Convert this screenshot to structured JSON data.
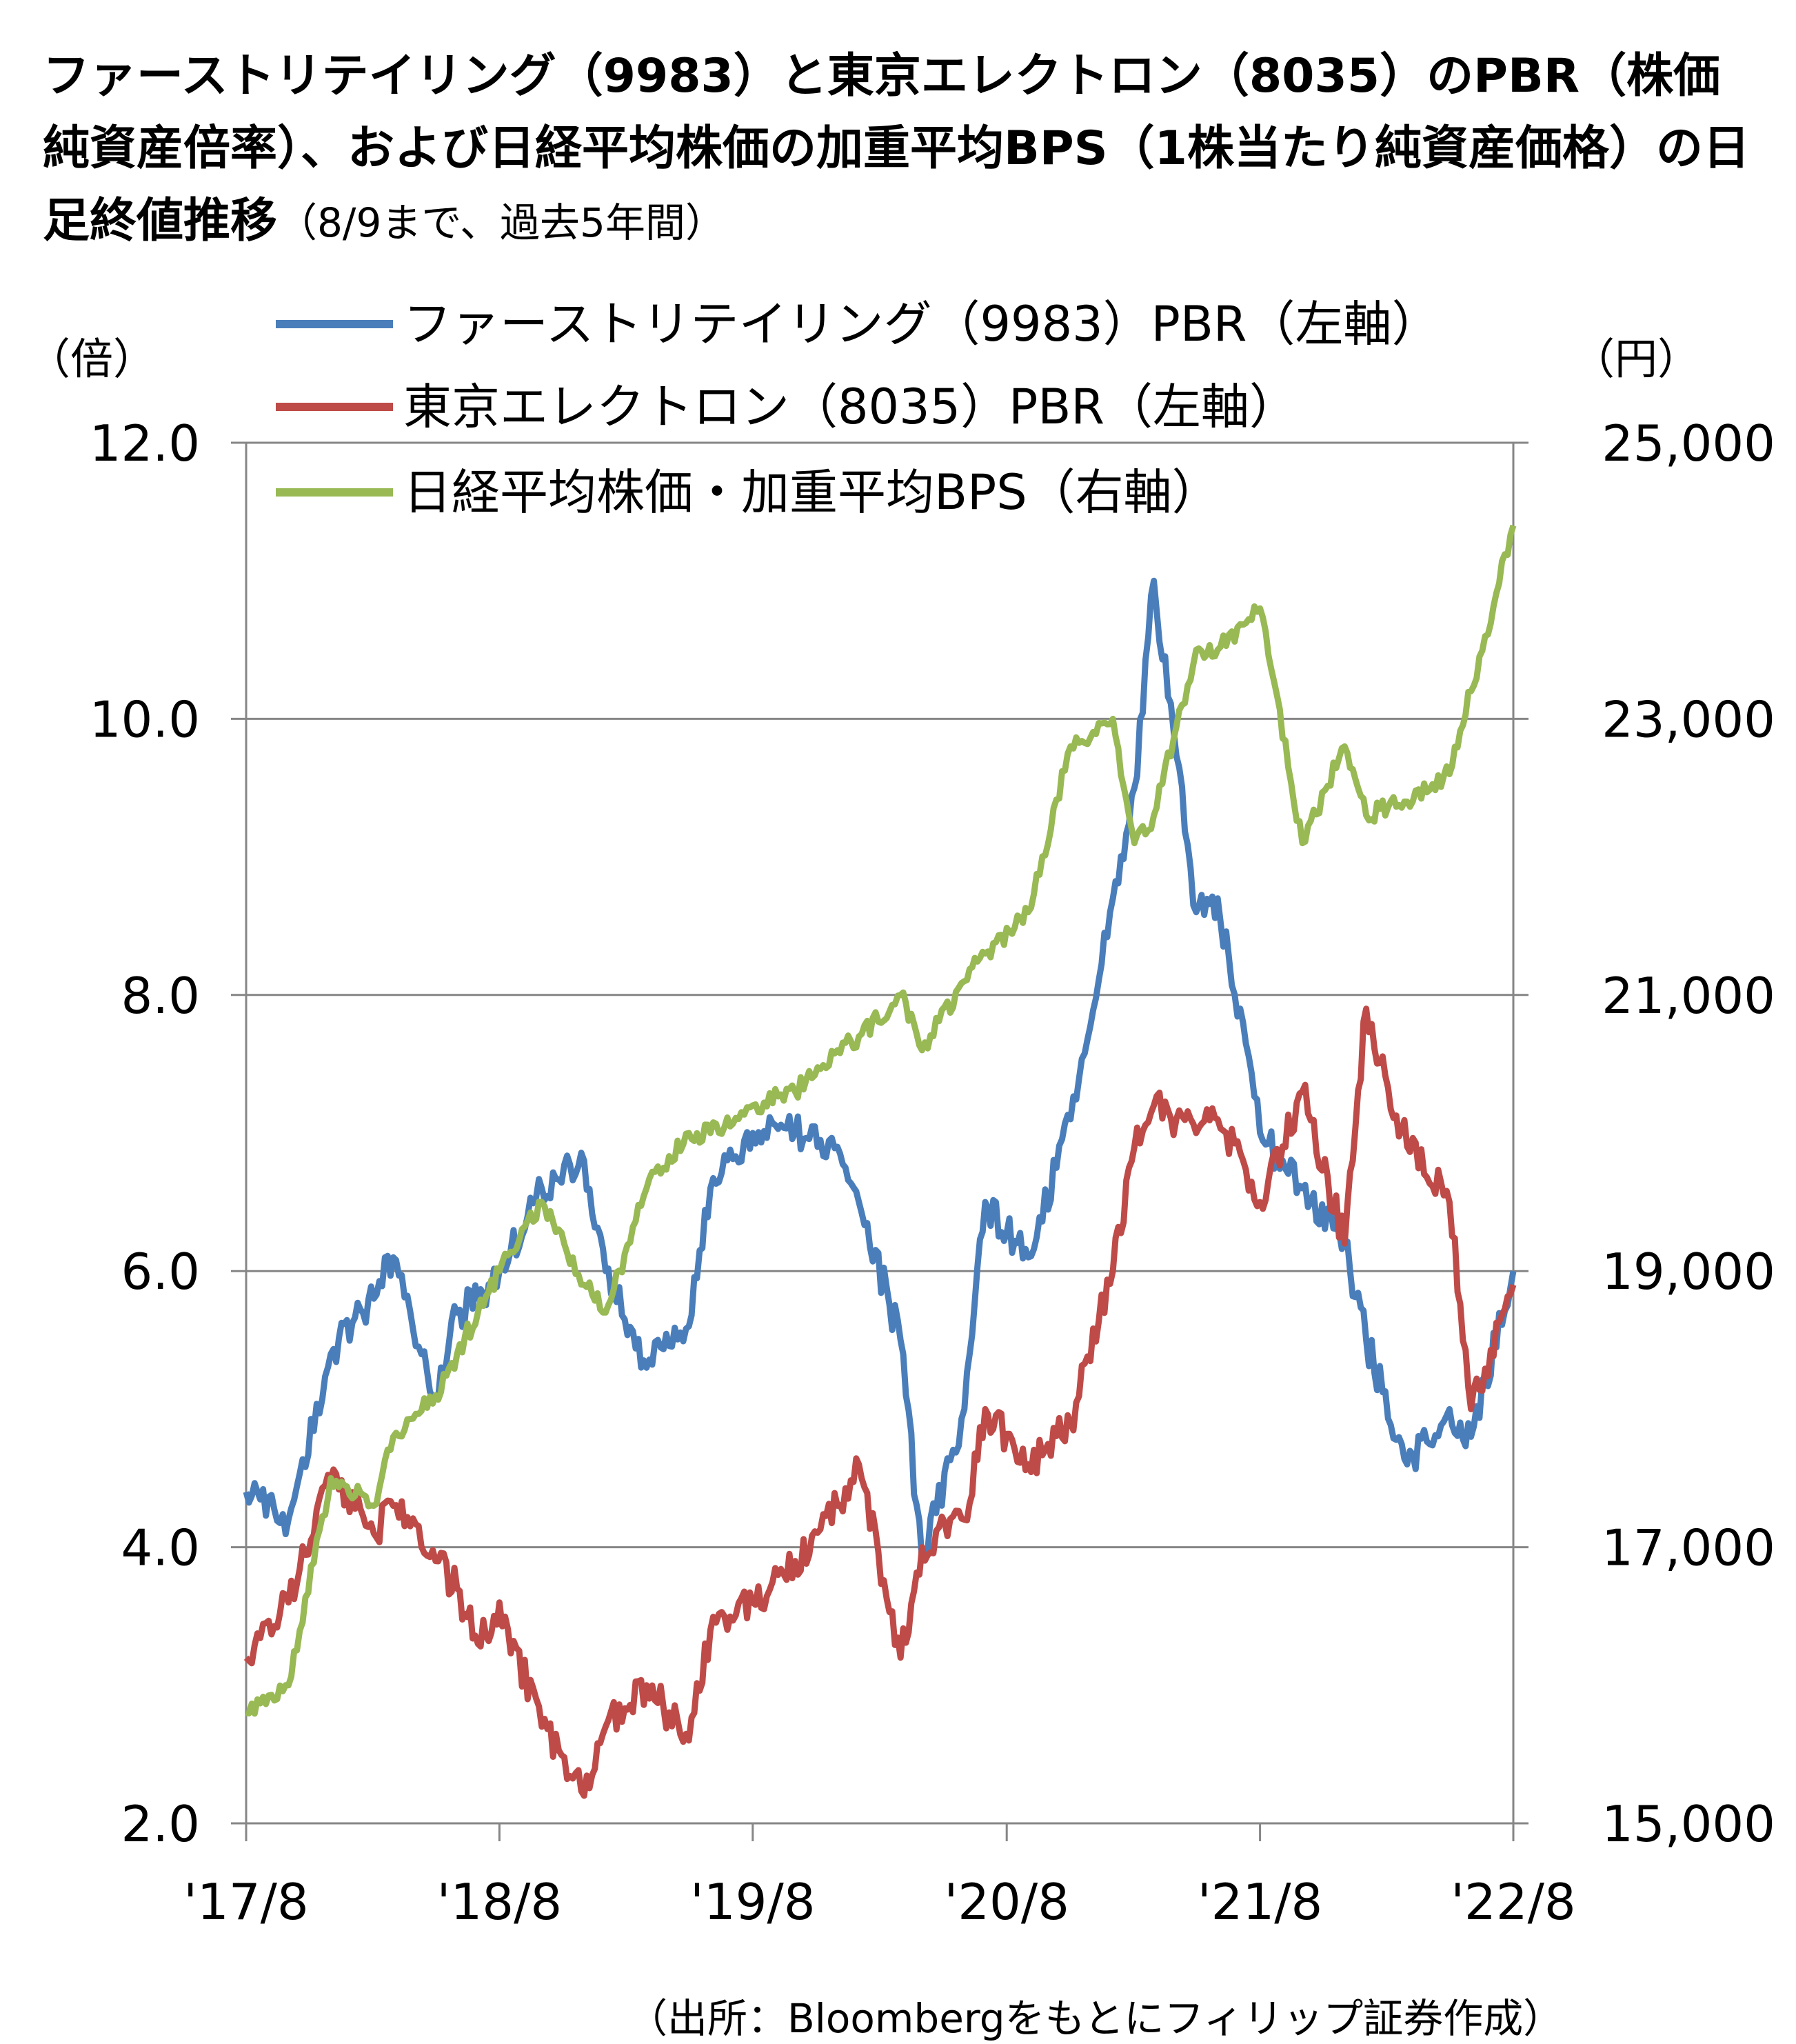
{
  "title": {
    "main": "ファーストリテイリング（9983）と東京エレクトロン（8035）のPBR（株価純資産倍率）、および日経平均株価の加重平均BPS（1株当たり純資産価格）の日足終値推移",
    "sub": "（8/9まで、過去5年間）"
  },
  "units": {
    "left": "（倍）",
    "right": "（円）"
  },
  "source": "（出所：Bloombergをもとにフィリップ証券作成）",
  "colors": {
    "blue": "#4a7ebb",
    "red": "#be4b48",
    "green": "#98b954",
    "grid": "#868686"
  },
  "chart_data": {
    "type": "line",
    "x_ticks": [
      "'17/8",
      "'18/8",
      "'19/8",
      "'20/8",
      "'21/8",
      "'22/8"
    ],
    "x_tick_dates": [
      "2017-08",
      "2018-08",
      "2019-08",
      "2020-08",
      "2021-08",
      "2022-08"
    ],
    "y_left": {
      "ticks": [
        "2.0",
        "4.0",
        "6.0",
        "8.0",
        "10.0",
        "12.0"
      ],
      "range": [
        2,
        12
      ]
    },
    "y_right": {
      "ticks": [
        "15,000",
        "17,000",
        "19,000",
        "21,000",
        "23,000",
        "25,000"
      ],
      "range": [
        15000,
        25000
      ]
    },
    "grid": true,
    "legend_position": "top",
    "series": [
      {
        "name": "ファーストリテイリング（9983）PBR（左軸）",
        "axis": "left",
        "color": "#4a7ebb",
        "x": [
          "2017-08",
          "2017-10",
          "2017-12",
          "2018-02",
          "2018-03",
          "2018-05",
          "2018-06",
          "2018-07",
          "2018-08",
          "2018-10",
          "2018-12",
          "2019-01",
          "2019-03",
          "2019-05",
          "2019-06",
          "2019-08",
          "2019-10",
          "2019-12",
          "2020-01",
          "2020-03",
          "2020-04",
          "2020-06",
          "2020-07",
          "2020-09",
          "2020-11",
          "2021-01",
          "2021-02",
          "2021-03",
          "2021-05",
          "2021-06",
          "2021-08",
          "2021-10",
          "2021-12",
          "2022-01",
          "2022-03",
          "2022-05",
          "2022-06",
          "2022-08"
        ],
        "values": [
          4.4,
          4.2,
          5.4,
          5.8,
          6.1,
          5.1,
          5.7,
          5.8,
          6.0,
          6.6,
          6.8,
          6.0,
          5.3,
          5.6,
          6.6,
          7.0,
          7.0,
          6.9,
          6.5,
          5.5,
          3.9,
          5.0,
          6.5,
          6.1,
          7.1,
          8.7,
          9.5,
          11.0,
          8.6,
          8.7,
          7.0,
          6.6,
          6.2,
          5.5,
          4.6,
          5.0,
          4.8,
          6.0
        ]
      },
      {
        "name": "東京エレクトロン（8035）PBR（左軸）",
        "axis": "left",
        "color": "#be4b48",
        "x": [
          "2017-08",
          "2017-10",
          "2017-12",
          "2018-02",
          "2018-03",
          "2018-05",
          "2018-06",
          "2018-07",
          "2018-08",
          "2018-10",
          "2018-12",
          "2019-01",
          "2019-03",
          "2019-05",
          "2019-06",
          "2019-08",
          "2019-10",
          "2019-12",
          "2020-01",
          "2020-03",
          "2020-04",
          "2020-06",
          "2020-07",
          "2020-09",
          "2020-11",
          "2021-01",
          "2021-02",
          "2021-03",
          "2021-05",
          "2021-06",
          "2021-08",
          "2021-10",
          "2021-12",
          "2022-01",
          "2022-03",
          "2022-05",
          "2022-06",
          "2022-08"
        ],
        "values": [
          3.2,
          3.6,
          4.5,
          4.1,
          4.3,
          3.9,
          3.7,
          3.3,
          3.6,
          2.7,
          2.2,
          2.7,
          3.0,
          2.6,
          3.4,
          3.6,
          3.9,
          4.3,
          4.6,
          3.2,
          4.0,
          4.2,
          5.0,
          4.6,
          4.9,
          6.0,
          6.9,
          7.2,
          7.0,
          7.1,
          6.5,
          7.3,
          6.2,
          7.9,
          6.9,
          6.5,
          5.0,
          5.9
        ]
      },
      {
        "name": "日経平均株価・加重平均BPS（右軸）",
        "axis": "right",
        "color": "#98b954",
        "x": [
          "2017-08",
          "2017-10",
          "2017-12",
          "2018-02",
          "2018-03",
          "2018-05",
          "2018-06",
          "2018-07",
          "2018-08",
          "2018-10",
          "2018-12",
          "2019-01",
          "2019-03",
          "2019-05",
          "2019-06",
          "2019-08",
          "2019-10",
          "2019-12",
          "2020-01",
          "2020-03",
          "2020-04",
          "2020-06",
          "2020-07",
          "2020-09",
          "2020-11",
          "2021-01",
          "2021-02",
          "2021-03",
          "2021-05",
          "2021-06",
          "2021-08",
          "2021-10",
          "2021-12",
          "2022-01",
          "2022-03",
          "2022-05",
          "2022-06",
          "2022-08"
        ],
        "values": [
          15800,
          16000,
          17500,
          17300,
          17800,
          18100,
          18400,
          18700,
          19000,
          19500,
          18900,
          18700,
          19600,
          20000,
          20000,
          20200,
          20300,
          20600,
          20700,
          21000,
          20600,
          21100,
          21300,
          21600,
          22800,
          23000,
          22100,
          22300,
          23500,
          23500,
          23800,
          22100,
          22800,
          22300,
          22400,
          22600,
          23200,
          24400
        ]
      }
    ]
  }
}
